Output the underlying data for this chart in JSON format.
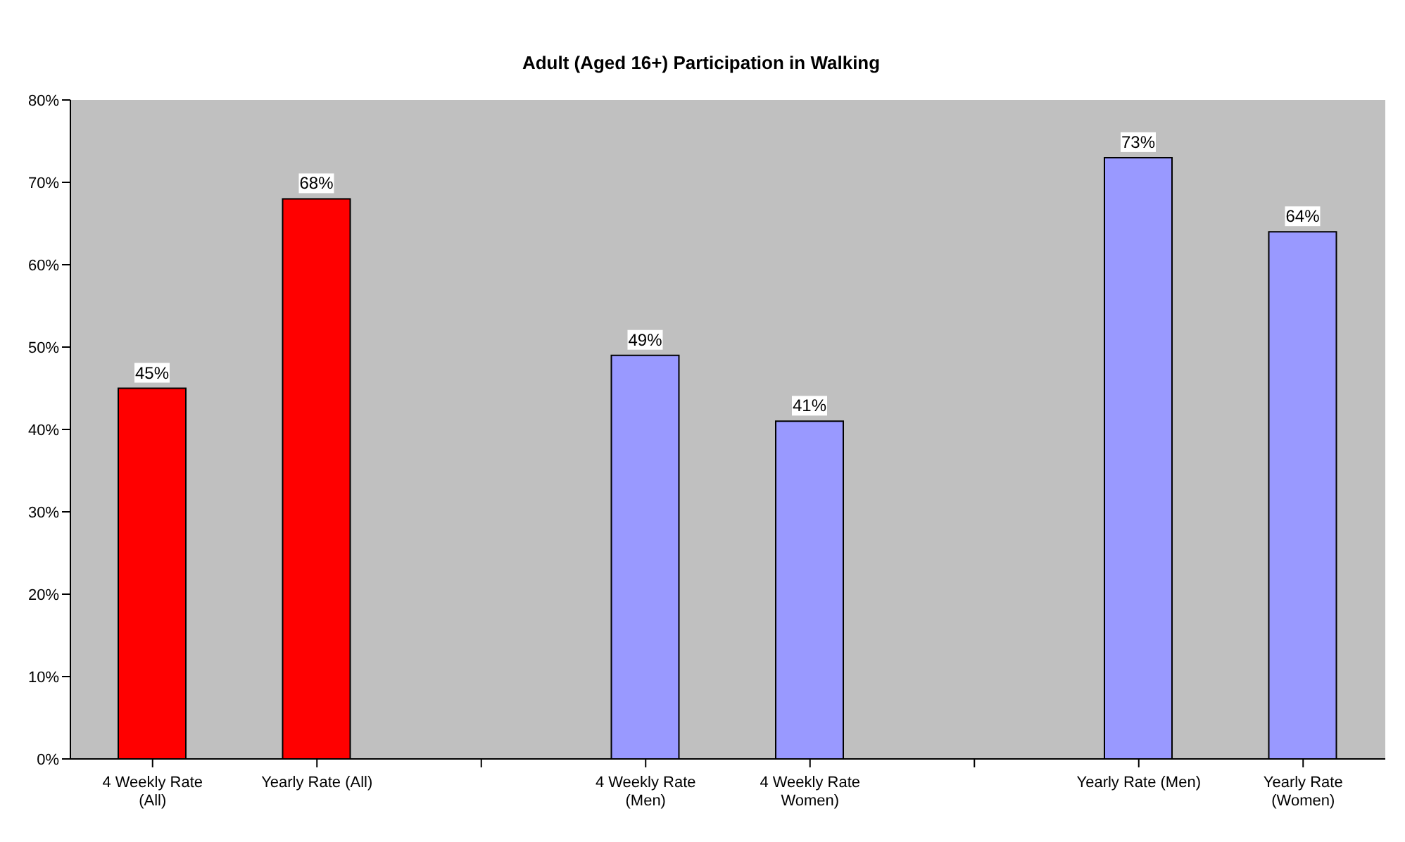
{
  "chart_data": {
    "type": "bar",
    "title": "Adult (Aged 16+) Participation in Walking",
    "categories": [
      "4 Weekly Rate (All)",
      "Yearly Rate (All)",
      null,
      "4 Weekly Rate (Men)",
      "4 Weekly Rate Women)",
      null,
      "Yearly Rate (Men)",
      "Yearly Rate (Women)"
    ],
    "values": [
      45,
      68,
      null,
      49,
      41,
      null,
      73,
      64
    ],
    "colors": [
      "#ff0000",
      "#ff0000",
      null,
      "#9999ff",
      "#9999ff",
      null,
      "#9999ff",
      "#9999ff"
    ],
    "value_labels": [
      "45%",
      "68%",
      null,
      "49%",
      "41%",
      null,
      "73%",
      "64%"
    ],
    "ylim": [
      0,
      80
    ],
    "yticks": [
      {
        "value": 0,
        "label": "0%"
      },
      {
        "value": 10,
        "label": "10%"
      },
      {
        "value": 20,
        "label": "20%"
      },
      {
        "value": 30,
        "label": "30%"
      },
      {
        "value": 40,
        "label": "40%"
      },
      {
        "value": 50,
        "label": "50%"
      },
      {
        "value": 60,
        "label": "60%"
      },
      {
        "value": 70,
        "label": "70%"
      },
      {
        "value": 80,
        "label": "80%"
      }
    ],
    "grid": false
  }
}
